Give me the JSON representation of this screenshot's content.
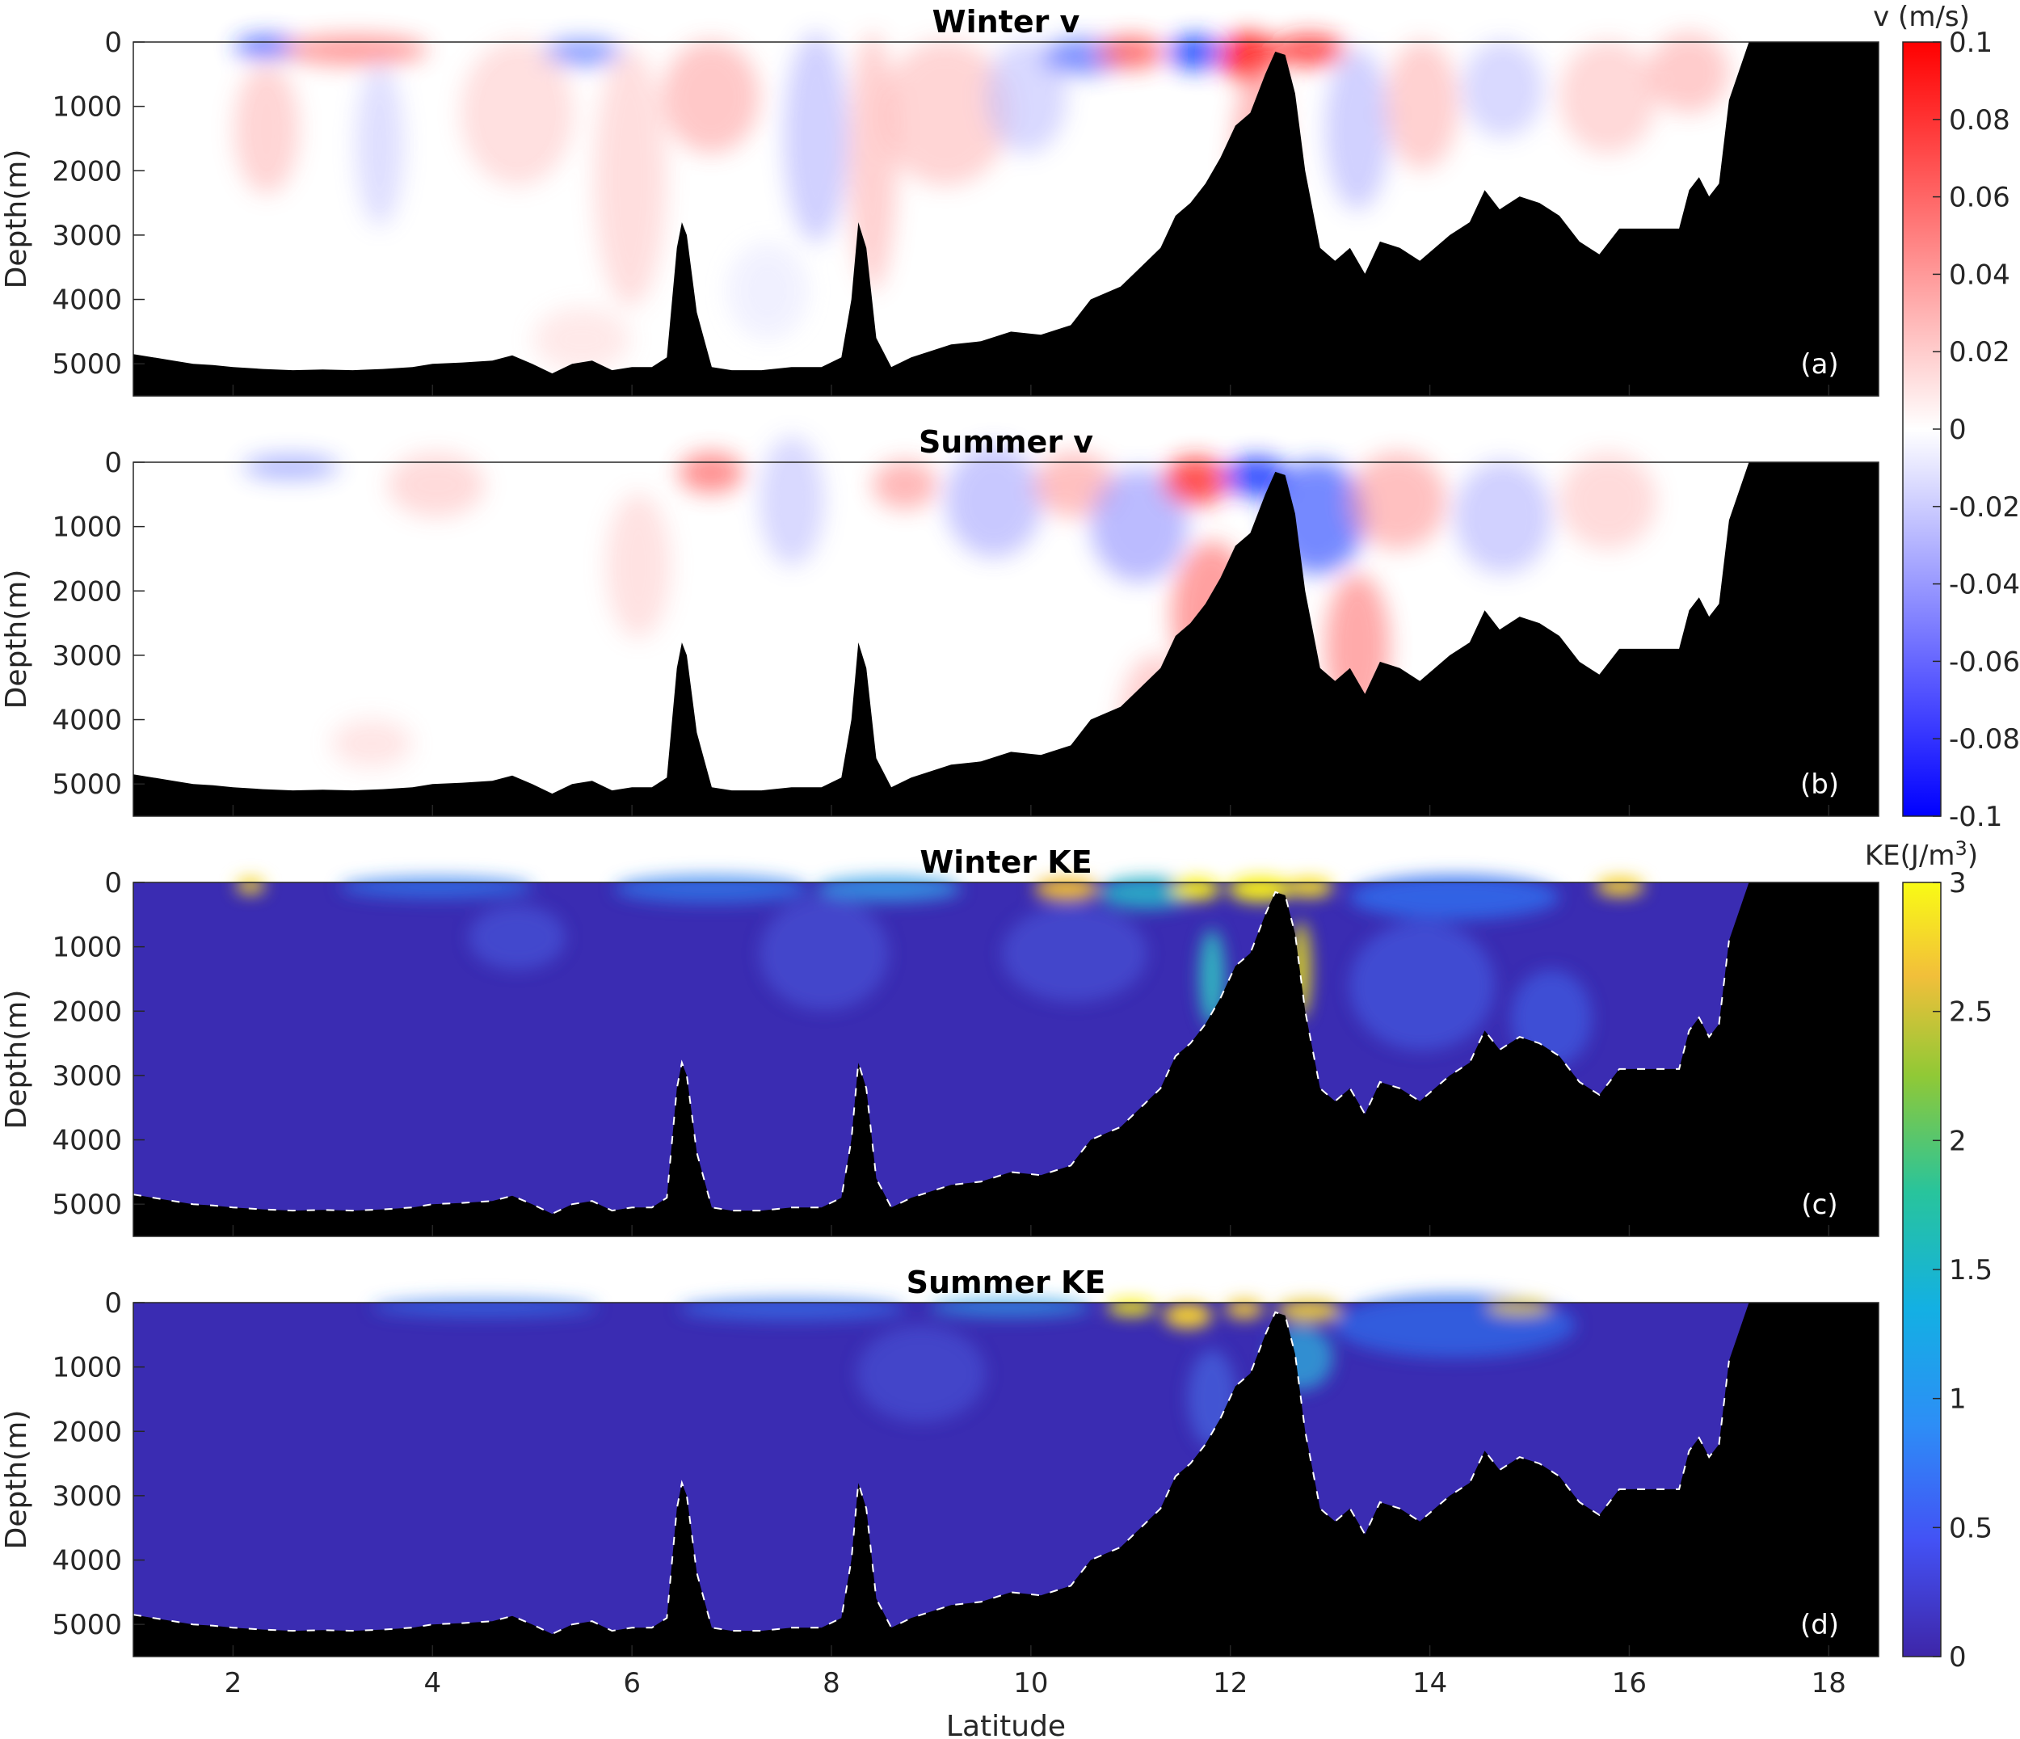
{
  "chart_data": [
    {
      "type": "heatmap",
      "panel": "(a)",
      "title": "Winter v",
      "ylabel": "Depth(m)",
      "xlim": [
        1,
        18.5
      ],
      "ylim": [
        5500,
        0
      ],
      "yticks": [
        0,
        1000,
        2000,
        3000,
        4000,
        5000
      ],
      "colormap": "diverging blue-white-red",
      "clim": [
        -0.1,
        0.1
      ],
      "value_samples": [
        {
          "lat": 3.0,
          "depth": 0,
          "v": 0.02
        },
        {
          "lat": 5.3,
          "depth": 300,
          "v": 0.02
        },
        {
          "lat": 7.5,
          "depth": 0,
          "v": 0.03
        },
        {
          "lat": 9.8,
          "depth": 600,
          "v": -0.02
        },
        {
          "lat": 11.0,
          "depth": 0,
          "v": 0.04
        },
        {
          "lat": 11.9,
          "depth": 0,
          "v": -0.08
        },
        {
          "lat": 12.3,
          "depth": 50,
          "v": 0.1
        },
        {
          "lat": 12.6,
          "depth": 50,
          "v": 0.1
        },
        {
          "lat": 13.5,
          "depth": 800,
          "v": 0.02
        },
        {
          "lat": 15.5,
          "depth": 600,
          "v": -0.02
        }
      ]
    },
    {
      "type": "heatmap",
      "panel": "(b)",
      "title": "Summer v",
      "ylabel": "Depth(m)",
      "xlim": [
        1,
        18.5
      ],
      "ylim": [
        5500,
        0
      ],
      "yticks": [
        0,
        1000,
        2000,
        3000,
        4000,
        5000
      ],
      "colormap": "diverging blue-white-red",
      "clim": [
        -0.1,
        0.1
      ],
      "value_samples": [
        {
          "lat": 1.8,
          "depth": 0,
          "v": -0.02
        },
        {
          "lat": 6.2,
          "depth": 0,
          "v": 0.04
        },
        {
          "lat": 9.5,
          "depth": 400,
          "v": -0.03
        },
        {
          "lat": 11.8,
          "depth": 100,
          "v": 0.08
        },
        {
          "lat": 12.3,
          "depth": 50,
          "v": -0.1
        },
        {
          "lat": 12.6,
          "depth": 300,
          "v": -0.08
        },
        {
          "lat": 11.6,
          "depth": 2200,
          "v": 0.04
        },
        {
          "lat": 13.4,
          "depth": 2800,
          "v": 0.05
        },
        {
          "lat": 15.4,
          "depth": 400,
          "v": -0.03
        }
      ]
    },
    {
      "type": "heatmap",
      "panel": "(c)",
      "title": "Winter KE",
      "ylabel": "Depth(m)",
      "xlim": [
        1,
        18.5
      ],
      "ylim": [
        5500,
        0
      ],
      "yticks": [
        0,
        1000,
        2000,
        3000,
        4000,
        5000
      ],
      "colormap": "parula",
      "clim": [
        0,
        3
      ],
      "value_samples": [
        {
          "lat": 2.2,
          "depth": 0,
          "ke": 2.8
        },
        {
          "lat": 10.4,
          "depth": 0,
          "ke": 2.5
        },
        {
          "lat": 11.7,
          "depth": 0,
          "ke": 3.0
        },
        {
          "lat": 12.3,
          "depth": 50,
          "ke": 3.0
        },
        {
          "lat": 12.7,
          "depth": 1200,
          "ke": 3.0
        },
        {
          "lat": 11.7,
          "depth": 1300,
          "ke": 2.0
        },
        {
          "lat": 16.0,
          "depth": 0,
          "ke": 2.6
        },
        {
          "lat": 6.0,
          "depth": 3000,
          "ke": 0.1
        }
      ]
    },
    {
      "type": "heatmap",
      "panel": "(d)",
      "title": "Summer KE",
      "ylabel": "Depth(m)",
      "xlabel": "Latitude",
      "xlim": [
        1,
        18.5
      ],
      "xticks": [
        2,
        4,
        6,
        8,
        10,
        12,
        14,
        16,
        18
      ],
      "ylim": [
        5500,
        0
      ],
      "yticks": [
        0,
        1000,
        2000,
        3000,
        4000,
        5000
      ],
      "colormap": "parula",
      "clim": [
        0,
        3
      ],
      "value_samples": [
        {
          "lat": 11.4,
          "depth": 50,
          "ke": 3.0
        },
        {
          "lat": 11.9,
          "depth": 200,
          "ke": 2.8
        },
        {
          "lat": 12.8,
          "depth": 0,
          "ke": 2.6
        },
        {
          "lat": 13.0,
          "depth": 300,
          "ke": 1.2
        },
        {
          "lat": 14.5,
          "depth": 300,
          "ke": 0.8
        },
        {
          "lat": 6.0,
          "depth": 3000,
          "ke": 0.1
        }
      ]
    }
  ],
  "bathymetry": {
    "lat": [
      1.0,
      1.2,
      1.4,
      1.6,
      1.8,
      2.0,
      2.3,
      2.6,
      2.9,
      3.2,
      3.5,
      3.8,
      4.0,
      4.3,
      4.6,
      4.8,
      5.0,
      5.2,
      5.4,
      5.6,
      5.8,
      6.0,
      6.2,
      6.35,
      6.45,
      6.5,
      6.55,
      6.65,
      6.8,
      7.0,
      7.3,
      7.6,
      7.9,
      8.1,
      8.2,
      8.27,
      8.35,
      8.45,
      8.6,
      8.8,
      9.0,
      9.2,
      9.5,
      9.8,
      10.1,
      10.4,
      10.6,
      10.9,
      11.1,
      11.3,
      11.45,
      11.6,
      11.75,
      11.9,
      12.05,
      12.2,
      12.35,
      12.45,
      12.55,
      12.65,
      12.75,
      12.9,
      13.05,
      13.2,
      13.35,
      13.5,
      13.7,
      13.9,
      14.2,
      14.4,
      14.55,
      14.7,
      14.9,
      15.1,
      15.3,
      15.5,
      15.7,
      15.9,
      16.1,
      16.3,
      16.5,
      16.6,
      16.7,
      16.8,
      16.9,
      17.0,
      17.2,
      18.5
    ],
    "depth": [
      4850,
      4900,
      4950,
      5000,
      5020,
      5050,
      5080,
      5100,
      5090,
      5100,
      5080,
      5050,
      5000,
      4980,
      4950,
      4870,
      5000,
      5150,
      5000,
      4950,
      5100,
      5050,
      5050,
      4900,
      3200,
      2800,
      3000,
      4200,
      5050,
      5100,
      5100,
      5050,
      5050,
      4900,
      4000,
      2800,
      3200,
      4600,
      5050,
      4900,
      4800,
      4700,
      4650,
      4500,
      4550,
      4400,
      4000,
      3800,
      3500,
      3200,
      2700,
      2500,
      2200,
      1800,
      1300,
      1100,
      500,
      150,
      200,
      800,
      2000,
      3200,
      3400,
      3200,
      3600,
      3100,
      3200,
      3400,
      3000,
      2800,
      2300,
      2600,
      2400,
      2500,
      2700,
      3100,
      3300,
      2900,
      2900,
      2900,
      2900,
      2300,
      2100,
      2400,
      2200,
      900,
      0,
      0
    ]
  }
}
